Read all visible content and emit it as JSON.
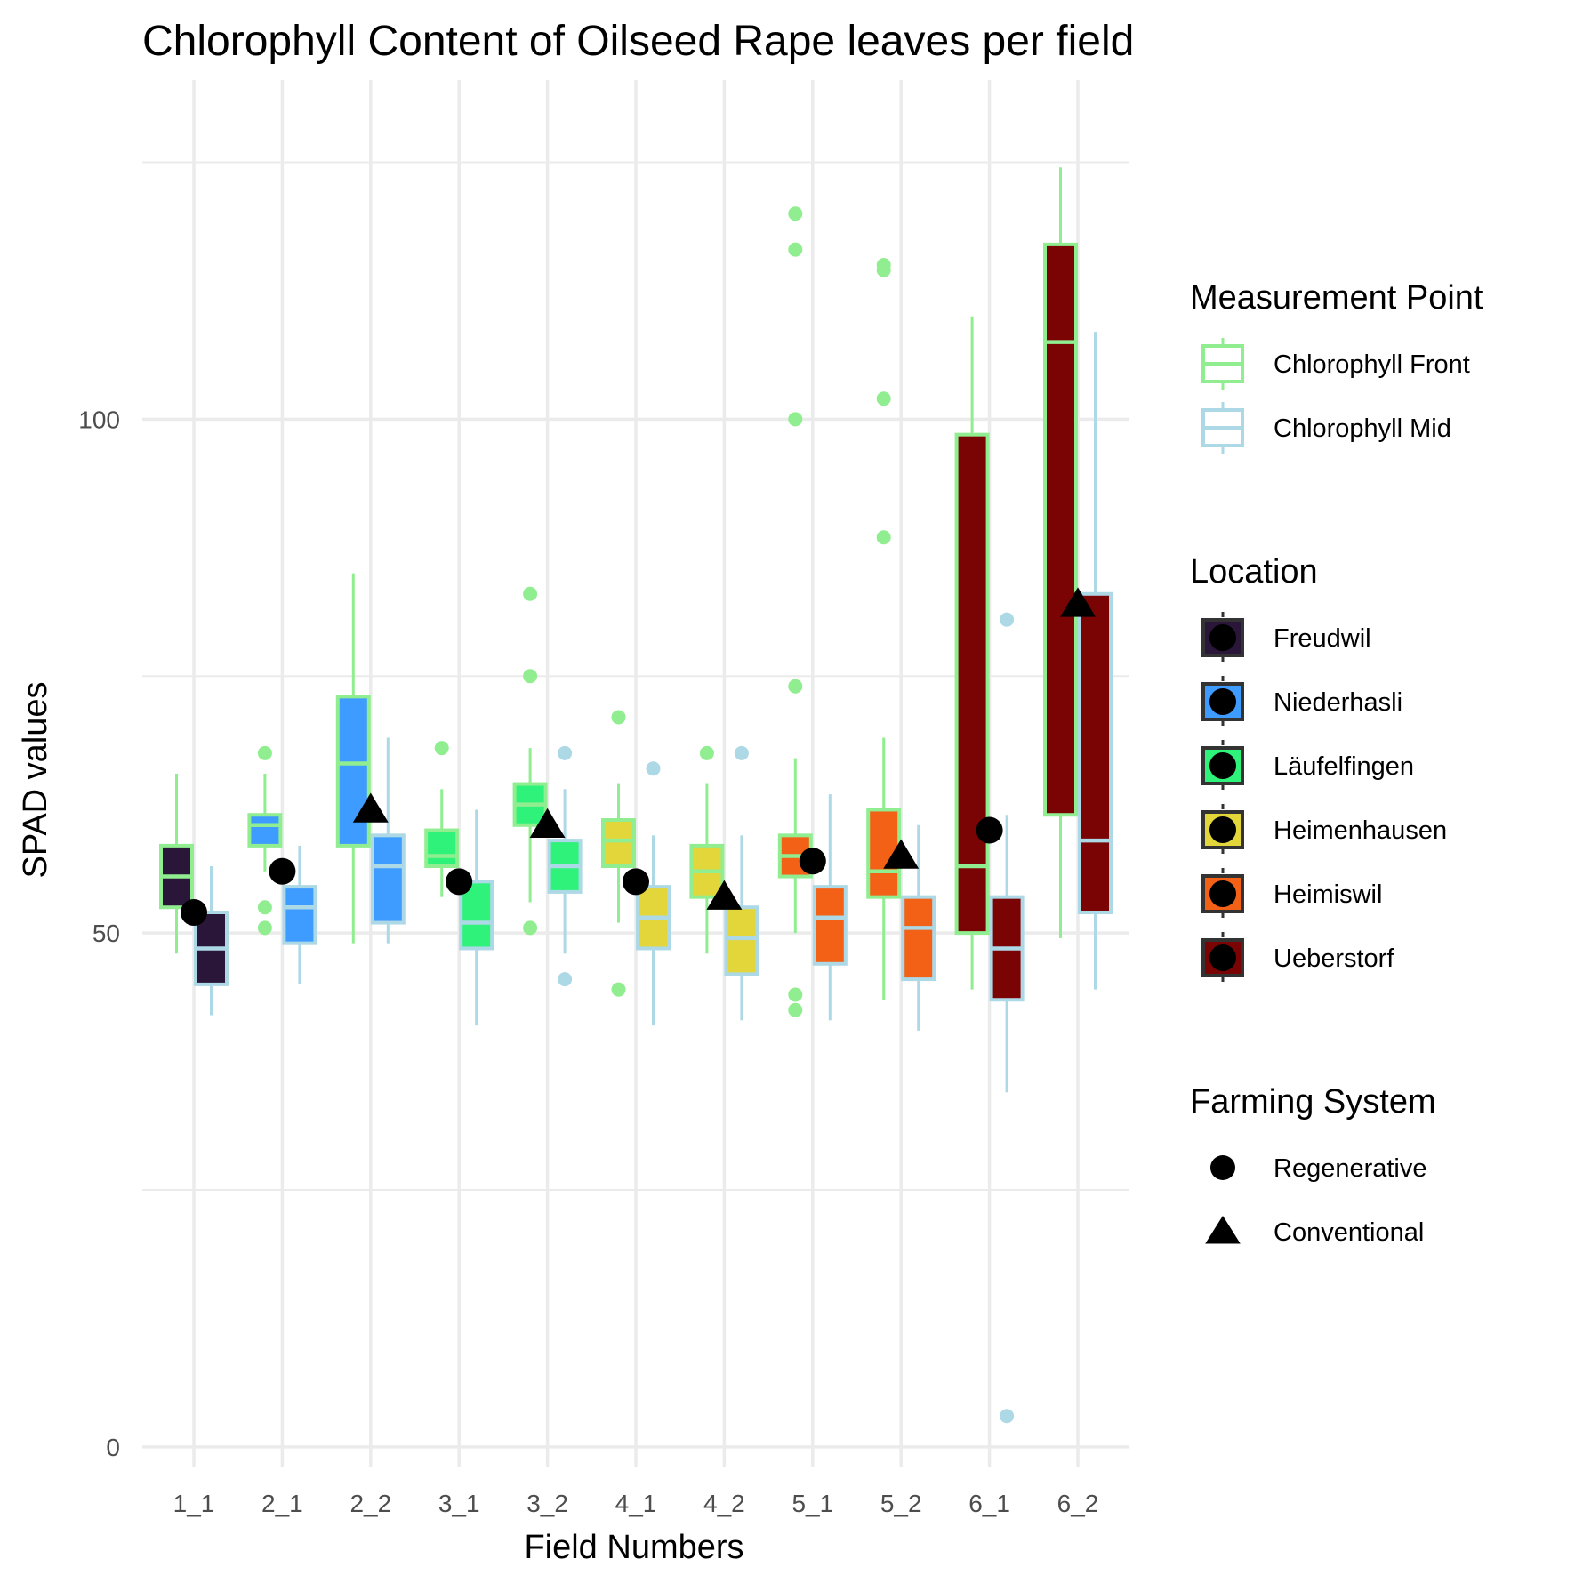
{
  "chart_data": {
    "type": "boxplot",
    "title": "Chlorophyll Content of Oilseed Rape leaves per field",
    "xlabel": "Field Numbers",
    "ylabel": "SPAD values",
    "ylim": [
      -2,
      133
    ],
    "y_ticks": [
      0,
      50,
      100
    ],
    "y_minor_ticks": [
      25,
      75,
      125
    ],
    "grid": true,
    "categories": [
      "1_1",
      "2_1",
      "2_2",
      "3_1",
      "3_2",
      "4_1",
      "4_2",
      "5_1",
      "5_2",
      "6_1",
      "6_2"
    ],
    "field_location": [
      "Freudwil",
      "Niederhasli",
      "Niederhasli",
      "Läufelfingen",
      "Läufelfingen",
      "Heimenhausen",
      "Heimenhausen",
      "Heimiswil",
      "Heimiswil",
      "Ueberstorf",
      "Ueberstorf"
    ],
    "series": [
      {
        "name": "Chlorophyll Front",
        "outline_color": "#90ee90",
        "boxes": [
          {
            "whisker_low": 48,
            "q1": 52.5,
            "median": 55.5,
            "q3": 58.5,
            "whisker_high": 65.5,
            "outliers": []
          },
          {
            "whisker_low": 56,
            "q1": 58.5,
            "median": 60.5,
            "q3": 61.5,
            "whisker_high": 65.5,
            "outliers": [
              52.5,
              50.5,
              67.5
            ]
          },
          {
            "whisker_low": 49,
            "q1": 58.5,
            "median": 66.5,
            "q3": 73,
            "whisker_high": 85,
            "outliers": []
          },
          {
            "whisker_low": 53.5,
            "q1": 56.5,
            "median": 57.5,
            "q3": 60,
            "whisker_high": 64,
            "outliers": [
              68
            ]
          },
          {
            "whisker_low": 53,
            "q1": 60.5,
            "median": 62.5,
            "q3": 64.5,
            "whisker_high": 68,
            "outliers": [
              50.5,
              75,
              83
            ]
          },
          {
            "whisker_low": 51,
            "q1": 56.5,
            "median": 59,
            "q3": 61,
            "whisker_high": 64.5,
            "outliers": [
              71,
              44.5
            ]
          },
          {
            "whisker_low": 48,
            "q1": 53.5,
            "median": 56,
            "q3": 58.5,
            "whisker_high": 64.5,
            "outliers": [
              67.5
            ]
          },
          {
            "whisker_low": 50,
            "q1": 55.5,
            "median": 57.5,
            "q3": 59.5,
            "whisker_high": 67,
            "outliers": [
              120,
              116.5,
              100,
              74,
              44,
              42.5
            ]
          },
          {
            "whisker_low": 43.5,
            "q1": 53.5,
            "median": 56,
            "q3": 62,
            "whisker_high": 69,
            "outliers": [
              115,
              114.5,
              102,
              88.5
            ]
          },
          {
            "whisker_low": 44.5,
            "q1": 50,
            "median": 56.5,
            "q3": 98.5,
            "whisker_high": 110,
            "outliers": []
          },
          {
            "whisker_low": 49.5,
            "q1": 61.5,
            "median": 107.5,
            "q3": 117,
            "whisker_high": 124.5,
            "outliers": []
          }
        ]
      },
      {
        "name": "Chlorophyll Mid",
        "outline_color": "#add8e6",
        "boxes": [
          {
            "whisker_low": 42,
            "q1": 45,
            "median": 48.5,
            "q3": 52,
            "whisker_high": 56.5,
            "outliers": []
          },
          {
            "whisker_low": 45,
            "q1": 49,
            "median": 52.5,
            "q3": 54.5,
            "whisker_high": 58.5,
            "outliers": []
          },
          {
            "whisker_low": 49,
            "q1": 51,
            "median": 56.5,
            "q3": 59.5,
            "whisker_high": 69,
            "outliers": []
          },
          {
            "whisker_low": 41,
            "q1": 48.5,
            "median": 51,
            "q3": 55,
            "whisker_high": 62,
            "outliers": []
          },
          {
            "whisker_low": 48,
            "q1": 54,
            "median": 56.5,
            "q3": 59,
            "whisker_high": 64,
            "outliers": [
              67.5,
              45.5
            ]
          },
          {
            "whisker_low": 41,
            "q1": 48.5,
            "median": 51.5,
            "q3": 54.5,
            "whisker_high": 59.5,
            "outliers": [
              66
            ]
          },
          {
            "whisker_low": 41.5,
            "q1": 46,
            "median": 49.5,
            "q3": 52.5,
            "whisker_high": 59.5,
            "outliers": [
              67.5
            ]
          },
          {
            "whisker_low": 41.5,
            "q1": 47,
            "median": 51.5,
            "q3": 54.5,
            "whisker_high": 63.5,
            "outliers": []
          },
          {
            "whisker_low": 40.5,
            "q1": 45.5,
            "median": 50.5,
            "q3": 53.5,
            "whisker_high": 60.5,
            "outliers": []
          },
          {
            "whisker_low": 34.5,
            "q1": 43.5,
            "median": 48.5,
            "q3": 53.5,
            "whisker_high": 61.5,
            "outliers": [
              3,
              80.5
            ]
          },
          {
            "whisker_low": 44.5,
            "q1": 52,
            "median": 59,
            "q3": 83,
            "whisker_high": 108.5,
            "outliers": []
          }
        ]
      }
    ],
    "farming_system_points": [
      {
        "field": "1_1",
        "system": "Regenerative",
        "value": 52
      },
      {
        "field": "2_1",
        "system": "Regenerative",
        "value": 56
      },
      {
        "field": "2_2",
        "system": "Conventional",
        "value": 62
      },
      {
        "field": "3_1",
        "system": "Regenerative",
        "value": 55
      },
      {
        "field": "3_2",
        "system": "Conventional",
        "value": 60.5
      },
      {
        "field": "4_1",
        "system": "Regenerative",
        "value": 55
      },
      {
        "field": "4_2",
        "system": "Conventional",
        "value": 53.5
      },
      {
        "field": "5_1",
        "system": "Regenerative",
        "value": 57
      },
      {
        "field": "5_2",
        "system": "Conventional",
        "value": 57.5
      },
      {
        "field": "6_1",
        "system": "Regenerative",
        "value": 60
      },
      {
        "field": "6_2",
        "system": "Conventional",
        "value": 82
      }
    ],
    "location_colors": {
      "Freudwil": "#2a1638",
      "Niederhasli": "#3e9bff",
      "Läufelfingen": "#2ef27a",
      "Heimenhausen": "#e3d63a",
      "Heimiswil": "#f26116",
      "Ueberstorf": "#7a0404"
    },
    "legends": [
      {
        "title": "Measurement Point",
        "kind": "box_outline",
        "items": [
          {
            "label": "Chlorophyll Front",
            "color": "#90ee90"
          },
          {
            "label": "Chlorophyll Mid",
            "color": "#add8e6"
          }
        ]
      },
      {
        "title": "Location",
        "kind": "fill_with_point",
        "items": [
          {
            "label": "Freudwil",
            "color": "#2a1638"
          },
          {
            "label": "Niederhasli",
            "color": "#3e9bff"
          },
          {
            "label": "Läufelfingen",
            "color": "#2ef27a"
          },
          {
            "label": "Heimenhausen",
            "color": "#e3d63a"
          },
          {
            "label": "Heimiswil",
            "color": "#f26116"
          },
          {
            "label": "Ueberstorf",
            "color": "#7a0404"
          }
        ]
      },
      {
        "title": "Farming System",
        "kind": "shape",
        "items": [
          {
            "label": "Regenerative",
            "shape": "circle"
          },
          {
            "label": "Conventional",
            "shape": "triangle"
          }
        ]
      }
    ],
    "legend_position": "right"
  }
}
